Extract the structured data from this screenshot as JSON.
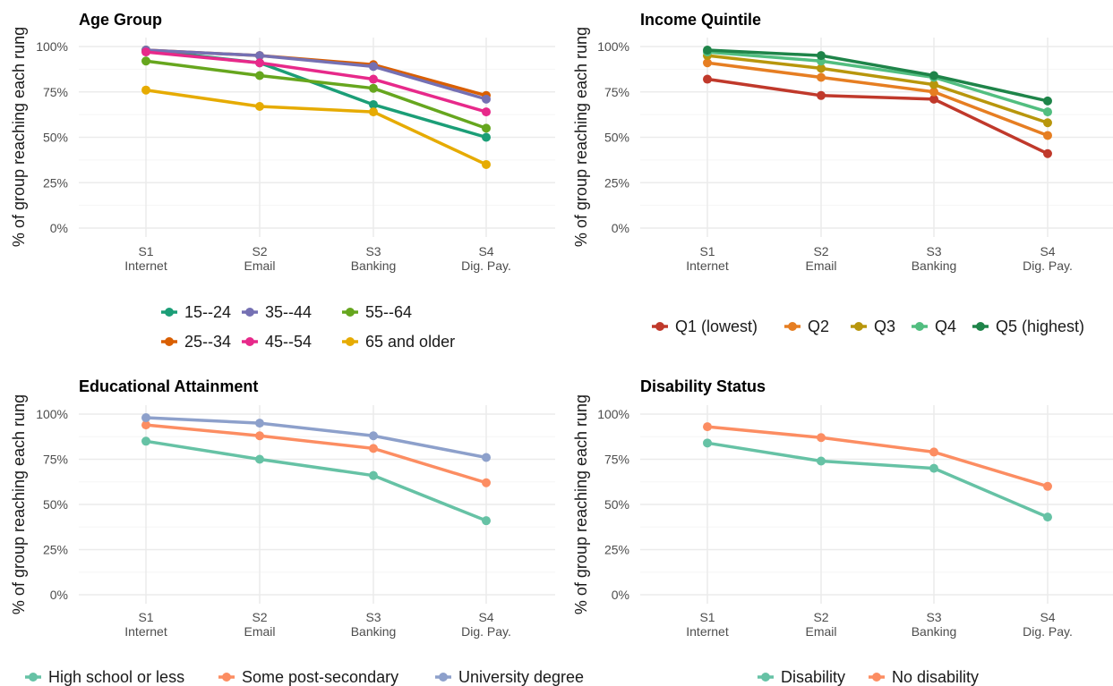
{
  "chart_data": [
    {
      "type": "line",
      "title": "Age Group",
      "ylabel": "% of group reaching each rung",
      "xlabel": "",
      "categories": [
        [
          "S1",
          "Internet"
        ],
        [
          "S2",
          "Email"
        ],
        [
          "S3",
          "Banking"
        ],
        [
          "S4",
          "Dig. Pay."
        ]
      ],
      "y_ticks": [
        "0%",
        "25%",
        "50%",
        "75%",
        "100%"
      ],
      "ylim": [
        0,
        100
      ],
      "grid": true,
      "legend_position": "bottom",
      "series": [
        {
          "name": "15--24",
          "color": "#1b9e77",
          "values": [
            98,
            91,
            68,
            50
          ]
        },
        {
          "name": "25--34",
          "color": "#d95f02",
          "values": [
            98,
            95,
            90,
            73
          ]
        },
        {
          "name": "35--44",
          "color": "#7570b3",
          "values": [
            98,
            95,
            89,
            71
          ]
        },
        {
          "name": "45--54",
          "color": "#e7298a",
          "values": [
            97,
            91,
            82,
            64
          ]
        },
        {
          "name": "55--64",
          "color": "#66a61e",
          "values": [
            92,
            84,
            77,
            55
          ]
        },
        {
          "name": "65 and older",
          "color": "#e6ab02",
          "values": [
            76,
            67,
            64,
            35
          ]
        }
      ]
    },
    {
      "type": "line",
      "title": "Income Quintile",
      "ylabel": "% of group reaching each rung",
      "xlabel": "",
      "categories": [
        [
          "S1",
          "Internet"
        ],
        [
          "S2",
          "Email"
        ],
        [
          "S3",
          "Banking"
        ],
        [
          "S4",
          "Dig. Pay."
        ]
      ],
      "y_ticks": [
        "0%",
        "25%",
        "50%",
        "75%",
        "100%"
      ],
      "ylim": [
        0,
        100
      ],
      "grid": true,
      "legend_position": "bottom",
      "series": [
        {
          "name": "Q1 (lowest)",
          "color": "#c0392b",
          "values": [
            82,
            73,
            71,
            41
          ]
        },
        {
          "name": "Q2",
          "color": "#e67e22",
          "values": [
            91,
            83,
            75,
            51
          ]
        },
        {
          "name": "Q3",
          "color": "#b8960c",
          "values": [
            95,
            88,
            79,
            58
          ]
        },
        {
          "name": "Q4",
          "color": "#52be80",
          "values": [
            97,
            92,
            83,
            64
          ]
        },
        {
          "name": "Q5 (highest)",
          "color": "#1e8449",
          "values": [
            98,
            95,
            84,
            70
          ]
        }
      ]
    },
    {
      "type": "line",
      "title": "Educational Attainment",
      "ylabel": "% of group reaching each rung",
      "xlabel": "",
      "categories": [
        [
          "S1",
          "Internet"
        ],
        [
          "S2",
          "Email"
        ],
        [
          "S3",
          "Banking"
        ],
        [
          "S4",
          "Dig. Pay."
        ]
      ],
      "y_ticks": [
        "0%",
        "25%",
        "50%",
        "75%",
        "100%"
      ],
      "ylim": [
        0,
        100
      ],
      "grid": true,
      "legend_position": "bottom",
      "series": [
        {
          "name": "High school or less",
          "color": "#66c2a5",
          "values": [
            85,
            75,
            66,
            41
          ]
        },
        {
          "name": "Some post-secondary",
          "color": "#fc8d62",
          "values": [
            94,
            88,
            81,
            62
          ]
        },
        {
          "name": "University degree",
          "color": "#8da0cb",
          "values": [
            98,
            95,
            88,
            76
          ]
        }
      ]
    },
    {
      "type": "line",
      "title": "Disability Status",
      "ylabel": "% of group reaching each rung",
      "xlabel": "",
      "categories": [
        [
          "S1",
          "Internet"
        ],
        [
          "S2",
          "Email"
        ],
        [
          "S3",
          "Banking"
        ],
        [
          "S4",
          "Dig. Pay."
        ]
      ],
      "y_ticks": [
        "0%",
        "25%",
        "50%",
        "75%",
        "100%"
      ],
      "ylim": [
        0,
        100
      ],
      "grid": true,
      "legend_position": "bottom",
      "series": [
        {
          "name": "Disability",
          "color": "#66c2a5",
          "values": [
            84,
            74,
            70,
            43
          ]
        },
        {
          "name": "No disability",
          "color": "#fc8d62",
          "values": [
            93,
            87,
            79,
            60
          ]
        }
      ]
    }
  ]
}
